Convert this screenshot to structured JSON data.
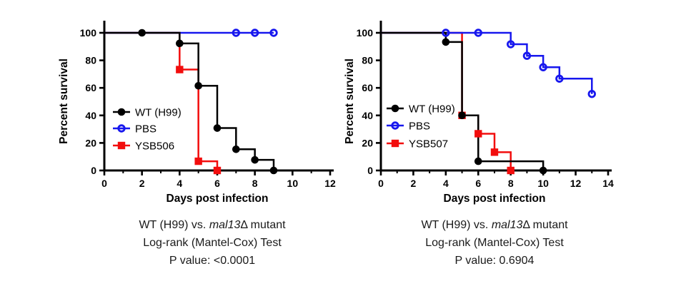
{
  "chart_data": [
    {
      "type": "line",
      "subtype": "kaplan-meier-step",
      "title": "",
      "xlabel": "Days post infection",
      "ylabel": "Percent survival",
      "xlim": [
        0,
        12
      ],
      "ylim": [
        0,
        100
      ],
      "xticks": [
        0,
        2,
        4,
        6,
        8,
        10,
        12
      ],
      "yticks": [
        0,
        20,
        40,
        60,
        80,
        100
      ],
      "grid": false,
      "legend_position": "inside-left",
      "series": [
        {
          "name": "WT (H99)",
          "color": "#000000",
          "marker": "filled-circle",
          "steps": [
            [
              0,
              100
            ],
            [
              4,
              92.3
            ],
            [
              5,
              61.5
            ],
            [
              6,
              30.8
            ],
            [
              7,
              15.4
            ],
            [
              8,
              7.7
            ],
            [
              9,
              0
            ]
          ],
          "marker_points": [
            [
              2,
              100
            ],
            [
              4,
              92.3
            ],
            [
              5,
              61.5
            ],
            [
              6,
              30.8
            ],
            [
              7,
              15.4
            ],
            [
              8,
              7.7
            ],
            [
              9,
              0
            ]
          ]
        },
        {
          "name": "PBS",
          "color": "#1717ee",
          "marker": "open-circle",
          "steps": [
            [
              0,
              100
            ],
            [
              9,
              100
            ]
          ],
          "marker_points": [
            [
              7,
              100
            ],
            [
              8,
              100
            ],
            [
              9,
              100
            ]
          ]
        },
        {
          "name": "YSB506",
          "color": "#f20d0d",
          "marker": "filled-square",
          "steps": [
            [
              0,
              100
            ],
            [
              4,
              73.3
            ],
            [
              5,
              6.7
            ],
            [
              6,
              0
            ]
          ],
          "marker_points": [
            [
              4,
              73.3
            ],
            [
              5,
              6.7
            ],
            [
              6,
              0
            ]
          ]
        }
      ],
      "caption": {
        "comparison_prefix": "WT (H99) vs. ",
        "comparison_italic": "mal13",
        "comparison_delta": "Δ",
        "comparison_suffix": " mutant",
        "test": "Log-rank (Mantel-Cox) Test",
        "p_value": "P value: <0.0001"
      }
    },
    {
      "type": "line",
      "subtype": "kaplan-meier-step",
      "title": "",
      "xlabel": "Days post infection",
      "ylabel": "Percent survival",
      "xlim": [
        0,
        14
      ],
      "ylim": [
        0,
        100
      ],
      "xticks": [
        0,
        2,
        4,
        6,
        8,
        10,
        12,
        14
      ],
      "yticks": [
        0,
        20,
        40,
        60,
        80,
        100
      ],
      "grid": false,
      "legend_position": "inside-left",
      "series": [
        {
          "name": "WT (H99)",
          "color": "#000000",
          "marker": "filled-circle",
          "steps": [
            [
              0,
              100
            ],
            [
              4,
              93.3
            ],
            [
              5,
              40
            ],
            [
              6,
              6.7
            ],
            [
              10,
              0
            ]
          ],
          "marker_points": [
            [
              4,
              93.3
            ],
            [
              5,
              40
            ],
            [
              6,
              6.7
            ],
            [
              10,
              0
            ]
          ]
        },
        {
          "name": "PBS",
          "color": "#1717ee",
          "marker": "open-circle",
          "steps": [
            [
              0,
              100
            ],
            [
              8,
              91.7
            ],
            [
              9,
              83.3
            ],
            [
              10,
              75
            ],
            [
              11,
              66.7
            ],
            [
              13,
              55.6
            ]
          ],
          "marker_points": [
            [
              4,
              100
            ],
            [
              6,
              100
            ],
            [
              8,
              91.7
            ],
            [
              9,
              83.3
            ],
            [
              10,
              75
            ],
            [
              11,
              66.7
            ],
            [
              13,
              55.6
            ]
          ]
        },
        {
          "name": "YSB507",
          "color": "#f20d0d",
          "marker": "filled-square",
          "steps": [
            [
              0,
              100
            ],
            [
              5,
              40
            ],
            [
              6,
              26.7
            ],
            [
              7,
              13.3
            ],
            [
              8,
              0
            ]
          ],
          "marker_points": [
            [
              5,
              40
            ],
            [
              6,
              26.7
            ],
            [
              7,
              13.3
            ],
            [
              8,
              0
            ]
          ]
        }
      ],
      "caption": {
        "comparison_prefix": "WT (H99) vs. ",
        "comparison_italic": "mal13",
        "comparison_delta": "Δ",
        "comparison_suffix": " mutant",
        "test": "Log-rank (Mantel-Cox) Test",
        "p_value": "P value: 0.6904"
      }
    }
  ]
}
